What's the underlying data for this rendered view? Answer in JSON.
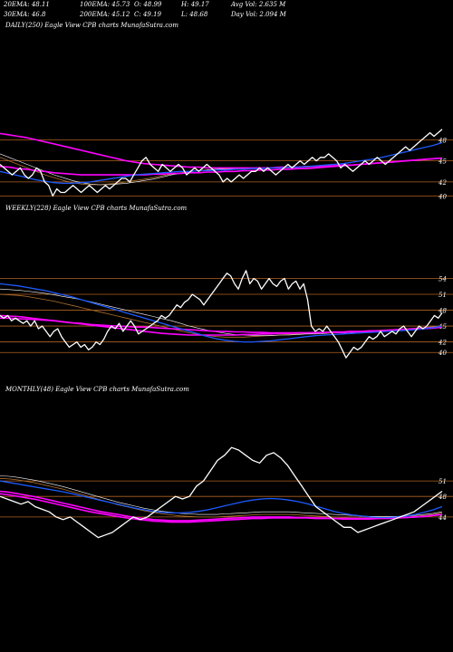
{
  "header": {
    "row1": [
      {
        "id": "ema20",
        "text": "20EMA: 48.11"
      },
      {
        "id": "ema100",
        "text": "100EMA: 45.73"
      },
      {
        "id": "open",
        "text": "O: 48.99"
      },
      {
        "id": "high",
        "text": "H: 49.17"
      },
      {
        "id": "avgvol",
        "text": "Avg Vol: 2.635  M"
      }
    ],
    "row2": [
      {
        "id": "ema30",
        "text": "30EMA: 46.8"
      },
      {
        "id": "ema200",
        "text": "200EMA: 45.12"
      },
      {
        "id": "close",
        "text": "C: 49.19"
      },
      {
        "id": "low",
        "text": "L: 48.68"
      },
      {
        "id": "dayvol",
        "text": "Day Vol: 2.094  M"
      }
    ]
  },
  "chart_data": [
    {
      "type": "line",
      "label": "DAILY(250) Eagle  View  CPB charts MunafaSutra.com",
      "ylim": [
        38.5,
        50.5
      ],
      "yticks": [
        48,
        45,
        42,
        40
      ],
      "price": [
        44.5,
        44,
        43.5,
        43,
        43.5,
        44,
        43,
        42.5,
        43,
        44,
        43.5,
        42,
        41.5,
        40,
        41,
        40.5,
        40.5,
        41,
        41.5,
        41,
        40.5,
        41,
        41.5,
        41,
        40.5,
        41,
        41.5,
        41,
        41.5,
        42,
        42.5,
        42.5,
        42,
        43,
        44,
        45,
        45.5,
        44.5,
        44,
        43.5,
        44.5,
        44,
        43.5,
        44,
        44.5,
        44,
        43,
        43.5,
        44,
        43.5,
        44,
        44.5,
        44,
        43.5,
        43,
        42,
        42.5,
        42,
        42.5,
        43,
        42.5,
        43,
        43.5,
        43.5,
        44,
        43.5,
        44,
        43.5,
        43,
        43.5,
        44,
        44.5,
        44,
        44.5,
        45,
        44.5,
        45,
        45.5,
        45,
        45.5,
        45.5,
        46,
        45.5,
        45,
        44,
        44.5,
        44,
        43.5,
        44,
        44.5,
        45,
        44.5,
        45,
        45.5,
        45,
        44.5,
        45,
        45.5,
        46,
        46.5,
        47,
        46.5,
        47,
        47.5,
        48,
        48.5,
        49,
        48.5,
        49,
        49.5
      ],
      "ema_short": [
        43.5,
        43.2,
        42.9,
        42.6,
        42.3,
        42.1,
        41.9,
        41.8,
        41.8,
        41.9,
        42,
        42.2,
        42.4,
        42.6,
        42.8,
        43,
        43.1,
        43.2,
        43.3,
        43.4,
        43.5,
        43.5,
        43.6,
        43.6,
        43.7,
        43.7,
        43.8,
        43.8,
        43.9,
        43.9,
        44,
        44,
        44.1,
        44.1,
        44.2,
        44.3,
        44.4,
        44.5,
        44.6,
        44.8,
        45,
        45.2,
        45.4,
        45.7,
        46,
        46.3,
        46.6,
        46.9,
        47.2,
        47.6
      ],
      "ema_long": [
        44.2,
        44.1,
        43.9,
        43.8,
        43.6,
        43.5,
        43.3,
        43.2,
        43.1,
        43,
        43,
        43,
        43,
        43,
        43,
        43,
        43,
        43.1,
        43.1,
        43.2,
        43.2,
        43.3,
        43.3,
        43.4,
        43.4,
        43.5,
        43.5,
        43.6,
        43.6,
        43.7,
        43.7,
        43.8,
        43.8,
        43.9,
        43.9,
        44,
        44.1,
        44.2,
        44.3,
        44.4,
        44.5,
        44.6,
        44.7,
        44.8,
        44.9,
        45,
        45.1,
        45.2,
        45.3,
        45.4
      ],
      "ema_long2": [
        48.9,
        48.7,
        48.5,
        48.3,
        48,
        47.7,
        47.4,
        47.1,
        46.8,
        46.5,
        46.2,
        45.9,
        45.6,
        45.3,
        45,
        44.8,
        44.6,
        44.5,
        44.4,
        44.3,
        44.2,
        44.1,
        44.1,
        44,
        44,
        44,
        44,
        44,
        44,
        44,
        44,
        44.1,
        44.1,
        44.1,
        44.2,
        44.2,
        44.3,
        44.3,
        44.4,
        44.4,
        44.5,
        44.6,
        44.7,
        44.8,
        44.9,
        45,
        45.1,
        45.2,
        45.3,
        45.4
      ],
      "ema_mid": [
        46,
        45.5,
        45,
        44.5,
        44,
        43.5,
        43,
        42.6,
        42.2,
        41.9,
        41.7,
        41.6,
        41.6,
        41.7,
        41.8,
        42,
        42.2,
        42.4,
        42.7,
        43,
        43.2,
        43.4,
        43.6,
        43.7,
        43.8,
        43.9,
        43.9,
        44,
        44,
        44,
        44,
        44,
        44.1,
        44.1,
        44.2,
        44.2,
        44.3,
        44.3,
        44.4,
        44.4,
        44.5,
        44.6,
        44.7,
        44.8,
        44.9,
        45,
        45.1,
        45.2,
        45.3,
        45.4
      ],
      "ema_mid2": [
        45.5,
        45,
        44.5,
        44,
        43.5,
        43,
        42.6,
        42.2,
        41.9,
        41.7,
        41.6,
        41.6,
        41.7,
        41.8,
        42,
        42.2,
        42.4,
        42.6,
        42.9,
        43.1,
        43.3,
        43.5,
        43.6,
        43.7,
        43.8,
        43.8,
        43.9,
        43.9,
        44,
        44,
        44,
        44,
        44,
        44.1,
        44.1,
        44.2,
        44.2,
        44.3,
        44.3,
        44.4,
        44.5,
        44.6,
        44.7,
        44.8,
        44.9,
        45,
        45.1,
        45.2,
        45.3,
        45.4
      ]
    },
    {
      "type": "line",
      "label": "WEEKLY(228) Eagle  View  CPB charts MunafaSutra.com",
      "ylim": [
        38.5,
        57
      ],
      "yticks": [
        54,
        51,
        48,
        45,
        42,
        40
      ],
      "price": [
        47,
        46.5,
        47,
        46,
        46.5,
        46,
        45.5,
        46,
        45,
        46,
        44.5,
        45,
        44,
        43,
        44,
        44.5,
        43,
        42,
        41,
        41.5,
        42,
        41,
        41.5,
        40.5,
        41,
        42,
        41.5,
        42.5,
        44,
        45,
        44.5,
        45.5,
        44,
        45,
        46,
        45,
        43.5,
        44,
        44.5,
        45,
        45.5,
        46,
        47,
        46.5,
        47,
        48,
        49,
        48.5,
        49.5,
        50,
        51,
        50.5,
        50,
        49,
        50,
        51,
        52,
        53,
        54,
        55,
        54.5,
        53,
        52,
        54,
        55.5,
        53,
        54,
        53.5,
        52,
        53,
        54,
        53,
        52.5,
        53.5,
        54,
        52,
        53,
        53.5,
        52,
        53,
        50,
        45,
        44,
        44.5,
        44,
        45,
        44,
        43,
        42,
        40.5,
        39,
        40,
        41,
        40.5,
        41,
        42,
        43,
        42.5,
        43,
        44,
        43,
        43.5,
        44,
        43.5,
        44.5,
        45,
        44,
        43,
        44,
        45,
        44.5,
        45,
        46,
        47,
        46.5,
        47.5
      ],
      "ema_short": [
        53,
        52.8,
        52.6,
        52.3,
        52,
        51.7,
        51.3,
        50.9,
        50.5,
        50,
        49.5,
        49,
        48.5,
        48,
        47.5,
        47,
        46.5,
        46,
        45.5,
        45,
        44.5,
        44,
        43.5,
        43,
        42.6,
        42.3,
        42.1,
        42,
        42,
        42.1,
        42.2,
        42.4,
        42.6,
        42.8,
        43,
        43.2,
        43.3,
        43.4,
        43.5,
        43.6,
        43.7,
        43.8,
        43.9,
        44,
        44.1,
        44.2,
        44.3,
        44.5,
        44.7,
        45
      ],
      "ema_long": [
        47,
        46.9,
        46.8,
        46.6,
        46.4,
        46.2,
        46,
        45.8,
        45.6,
        45.5,
        45.3,
        45.2,
        45.1,
        45,
        44.9,
        44.8,
        44.8,
        44.7,
        44.6,
        44.5,
        44.4,
        44.3,
        44.2,
        44.1,
        44,
        44,
        43.9,
        43.9,
        43.8,
        43.8,
        43.7,
        43.7,
        43.7,
        43.7,
        43.7,
        43.7,
        43.8,
        43.8,
        43.8,
        43.9,
        43.9,
        44,
        44,
        44.1,
        44.2,
        44.3,
        44.4,
        44.5,
        44.6,
        44.8
      ],
      "ema_long2": [
        46.5,
        46.5,
        46.4,
        46.3,
        46.2,
        46.1,
        46,
        45.8,
        45.6,
        45.4,
        45.2,
        45,
        44.8,
        44.6,
        44.4,
        44.2,
        44,
        43.8,
        43.6,
        43.5,
        43.4,
        43.3,
        43.3,
        43.3,
        43.3,
        43.3,
        43.3,
        43.4,
        43.4,
        43.5,
        43.5,
        43.6,
        43.6,
        43.7,
        43.7,
        43.8,
        43.8,
        43.9,
        43.9,
        44,
        44,
        44.1,
        44.1,
        44.2,
        44.3,
        44.4,
        44.5,
        44.6,
        44.7,
        44.9
      ],
      "ema_mid": [
        52,
        51.9,
        51.8,
        51.6,
        51.4,
        51.2,
        50.9,
        50.6,
        50.3,
        50,
        49.6,
        49.2,
        48.8,
        48.4,
        48,
        47.6,
        47.2,
        46.8,
        46.4,
        46,
        45.5,
        45,
        44.6,
        44.2,
        43.9,
        43.6,
        43.4,
        43.3,
        43.2,
        43.2,
        43.2,
        43.3,
        43.3,
        43.4,
        43.5,
        43.5,
        43.6,
        43.7,
        43.7,
        43.8,
        43.9,
        44,
        44.1,
        44.2,
        44.3,
        44.4,
        44.5,
        44.6,
        44.8,
        45
      ],
      "ema_mid2": [
        51,
        50.9,
        50.8,
        50.6,
        50.3,
        50,
        49.7,
        49.3,
        48.9,
        48.5,
        48.1,
        47.7,
        47.3,
        46.9,
        46.5,
        46.1,
        45.7,
        45.3,
        44.9,
        44.5,
        44.1,
        43.7,
        43.4,
        43.2,
        43,
        42.9,
        42.9,
        42.9,
        43,
        43.1,
        43.2,
        43.3,
        43.4,
        43.5,
        43.6,
        43.7,
        43.7,
        43.8,
        43.9,
        44,
        44,
        44.1,
        44.2,
        44.3,
        44.4,
        44.5,
        44.6,
        44.7,
        44.9,
        45
      ]
    },
    {
      "type": "line",
      "label": "MONTHLY(48) Eagle  View  CPB charts MunafaSutra.com",
      "ylim": [
        38,
        60
      ],
      "yticks": [
        51,
        48,
        44
      ],
      "price": [
        48,
        47.5,
        47,
        46.5,
        47,
        46,
        45.5,
        45,
        44,
        43.5,
        44,
        43,
        42,
        41,
        40,
        40.5,
        41,
        42,
        43,
        44,
        43.5,
        44,
        45,
        46,
        47,
        48,
        47.5,
        48,
        50,
        51,
        53,
        55,
        56,
        57.5,
        57,
        56,
        55,
        54.5,
        56,
        56.5,
        55.5,
        54,
        52,
        50,
        48,
        46,
        45,
        44,
        43,
        42,
        42,
        41,
        41.5,
        42,
        42.5,
        43,
        43.5,
        44,
        44.5,
        45,
        46,
        47,
        48,
        49
      ],
      "ema_short": [
        51,
        50.7,
        50.4,
        50.1,
        49.8,
        49.5,
        49.2,
        48.9,
        48.5,
        48.1,
        47.7,
        47.3,
        46.9,
        46.5,
        46.1,
        45.7,
        45.4,
        45.1,
        44.9,
        44.8,
        44.8,
        44.9,
        45.1,
        45.4,
        45.8,
        46.2,
        46.6,
        47,
        47.3,
        47.5,
        47.6,
        47.5,
        47.3,
        47,
        46.6,
        46.1,
        45.6,
        45.1,
        44.7,
        44.4,
        44.2,
        44,
        43.9,
        43.9,
        44,
        44.2,
        44.5,
        44.9,
        45.4,
        46
      ],
      "ema_long": [
        49,
        48.8,
        48.5,
        48.2,
        47.9,
        47.5,
        47.1,
        46.7,
        46.3,
        45.9,
        45.5,
        45.1,
        44.8,
        44.5,
        44.2,
        43.9,
        43.7,
        43.5,
        43.4,
        43.3,
        43.3,
        43.3,
        43.4,
        43.5,
        43.6,
        43.7,
        43.8,
        43.9,
        44,
        44,
        44,
        44,
        44,
        43.9,
        43.9,
        43.8,
        43.8,
        43.7,
        43.7,
        43.7,
        43.7,
        43.7,
        43.7,
        43.8,
        43.8,
        43.9,
        44,
        44.1,
        44.3,
        44.5
      ],
      "ema_long2": [
        48.5,
        48.3,
        48,
        47.7,
        47.4,
        47,
        46.6,
        46.2,
        45.8,
        45.4,
        45,
        44.7,
        44.4,
        44.1,
        43.8,
        43.6,
        43.4,
        43.2,
        43.1,
        43,
        43,
        43,
        43.1,
        43.2,
        43.3,
        43.4,
        43.5,
        43.6,
        43.7,
        43.7,
        43.8,
        43.8,
        43.8,
        43.8,
        43.8,
        43.7,
        43.7,
        43.7,
        43.6,
        43.6,
        43.6,
        43.6,
        43.7,
        43.7,
        43.8,
        43.9,
        44,
        44.1,
        44.3,
        44.5
      ],
      "ema_mid": [
        52,
        51.9,
        51.7,
        51.4,
        51.1,
        50.7,
        50.3,
        49.9,
        49.4,
        48.9,
        48.4,
        47.9,
        47.4,
        46.9,
        46.5,
        46.1,
        45.7,
        45.4,
        45.1,
        44.9,
        44.7,
        44.6,
        44.5,
        44.5,
        44.5,
        44.6,
        44.7,
        44.8,
        44.9,
        45,
        45,
        45,
        45,
        44.9,
        44.8,
        44.7,
        44.6,
        44.5,
        44.4,
        44.3,
        44.2,
        44.1,
        44.1,
        44.1,
        44.1,
        44.2,
        44.3,
        44.5,
        44.7,
        45
      ],
      "ema_mid2": [
        51.5,
        51.4,
        51.2,
        50.9,
        50.6,
        50.2,
        49.8,
        49.4,
        48.9,
        48.4,
        47.9,
        47.4,
        46.9,
        46.4,
        46,
        45.6,
        45.2,
        44.9,
        44.6,
        44.4,
        44.2,
        44.1,
        44,
        44,
        44,
        44.1,
        44.2,
        44.3,
        44.4,
        44.5,
        44.5,
        44.5,
        44.5,
        44.4,
        44.3,
        44.2,
        44.1,
        44,
        43.9,
        43.8,
        43.8,
        43.8,
        43.8,
        43.8,
        43.9,
        44,
        44.1,
        44.3,
        44.5,
        44.8
      ]
    }
  ],
  "colors": {
    "price": "#ffffff",
    "ema_short": "#1e5bff",
    "ema_long": "#ff00ff",
    "ema_mid": "#ffffff",
    "ema_mid2": "#b07030",
    "level": "#b06020",
    "background": "#000000"
  }
}
